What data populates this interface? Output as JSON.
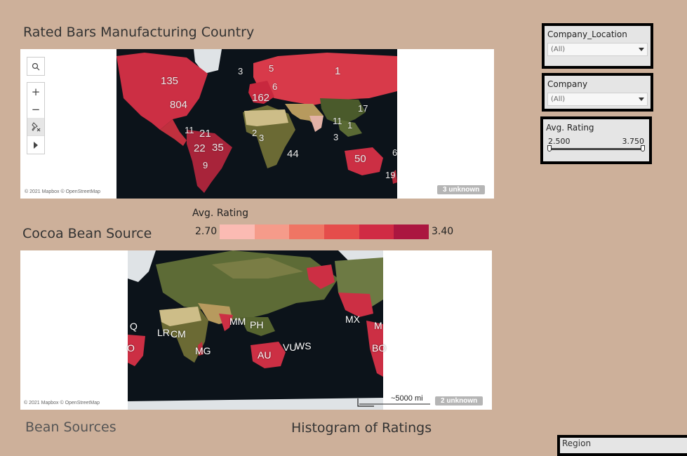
{
  "titles": {
    "rated_bars": "Rated Bars Manufacturing Country",
    "cocoa_source": "Cocoa Bean Source",
    "bean_sources": "Bean Sources",
    "histogram": "Histogram of Ratings"
  },
  "map_top": {
    "attribution": "© 2021 Mapbox © OpenStreetMap",
    "unknown": "3 unknown",
    "labels": [
      "135",
      "804",
      "3",
      "5",
      "1",
      "162",
      "6",
      "17",
      "11",
      "21",
      "22",
      "35",
      "9",
      "2",
      "3",
      "11",
      "1",
      "3",
      "44",
      "50",
      "19",
      "6"
    ]
  },
  "map_bottom": {
    "attribution": "© 2021 Mapbox © OpenStreetMap",
    "unknown": "2 unknown",
    "scale": "~5000 mi",
    "labels": [
      "Q",
      "O",
      "LR",
      "CM",
      "MG",
      "MM",
      "PH",
      "AU",
      "VU",
      "WS",
      "MX",
      "M",
      "BO"
    ]
  },
  "toolbar": {
    "search_icon": "search-icon",
    "zoom_in": "+",
    "zoom_out": "−",
    "pin_icon": "pin-icon",
    "play_icon": "play-icon"
  },
  "legend": {
    "title": "Avg. Rating",
    "min": "2.70",
    "max": "3.40",
    "colors": [
      "#fbbbb3",
      "#f59b8a",
      "#ef7564",
      "#e54d4b",
      "#d02b44",
      "#ab1640"
    ]
  },
  "filters": {
    "company_location": {
      "title": "Company_Location",
      "value": "(All)"
    },
    "company": {
      "title": "Company",
      "value": "(All)"
    },
    "avg_rating": {
      "title": "Avg. Rating",
      "min": "2.500",
      "max": "3.750",
      "low": 2.5,
      "high": 3.75
    },
    "region": {
      "title": "Region"
    }
  },
  "colors": {
    "background": "#cdb09a",
    "ocean": "#0c131a",
    "land": "#4d5a2e",
    "highlight": "#cc2f44"
  }
}
